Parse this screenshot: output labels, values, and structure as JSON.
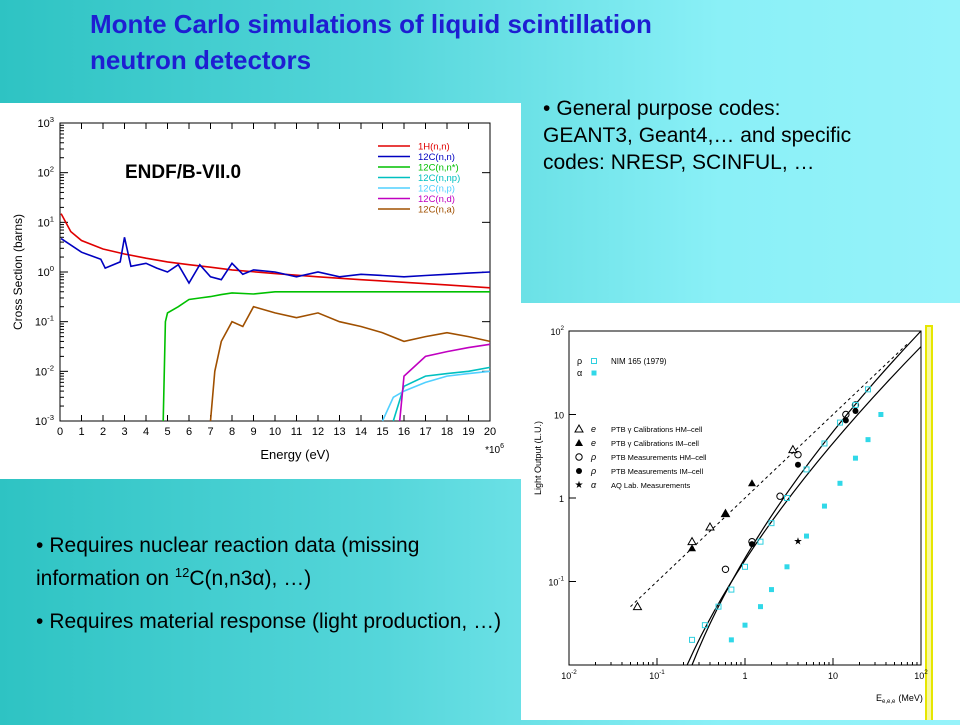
{
  "slide": {
    "title_line1": "Monte Carlo simulations of liquid scintillation",
    "title_line2": "neutron detectors",
    "top_bullet": "General purpose codes: GEANT3, Geant4,… and specific codes: NRESP, SCINFUL, …",
    "bottom_bullet_1_pre": "Requires nuclear reaction data (missing information on ",
    "bottom_bullet_1_sup": "12",
    "bottom_bullet_1_post": "C(n,n3α), …)",
    "bottom_bullet_2": "Requires material response (light production, …)",
    "bullet_symbol": "•"
  },
  "chart_data": [
    {
      "type": "line",
      "annotation": "ENDF/B-VII.0",
      "xlabel": "Energy (eV)",
      "ylabel": "Cross Section (barns)",
      "x_multiplier": "*10",
      "x_multiplier_exp": "6",
      "xlim": [
        0,
        20
      ],
      "ylim": [
        0.001,
        1000
      ],
      "yscale": "log",
      "x_ticks": [
        "0",
        "1",
        "2",
        "3",
        "4",
        "5",
        "6",
        "7",
        "8",
        "9",
        "10",
        "11",
        "12",
        "13",
        "14",
        "15",
        "16",
        "17",
        "18",
        "19",
        "20"
      ],
      "y_ticks": [
        {
          "base": "10",
          "exp": "-3"
        },
        {
          "base": "10",
          "exp": "-2"
        },
        {
          "base": "10",
          "exp": "-1"
        },
        {
          "base": "10",
          "exp": "0"
        },
        {
          "base": "10",
          "exp": "1"
        },
        {
          "base": "10",
          "exp": "2"
        },
        {
          "base": "10",
          "exp": "3"
        }
      ],
      "legend_position": "top-right",
      "series": [
        {
          "name": "1H(n,n)",
          "color": "#e00000",
          "x": [
            0.05,
            0.5,
            1,
            2,
            3,
            4,
            5,
            6,
            7,
            8,
            10,
            12,
            14,
            16,
            18,
            20
          ],
          "y": [
            15,
            6.5,
            4.3,
            2.9,
            2.3,
            1.9,
            1.6,
            1.4,
            1.25,
            1.1,
            0.93,
            0.8,
            0.7,
            0.62,
            0.55,
            0.48
          ]
        },
        {
          "name": "12C(n,n)",
          "color": "#0000c0",
          "x": [
            0.05,
            1,
            1.9,
            2.1,
            2.8,
            3,
            3.3,
            4,
            4.5,
            5,
            5.5,
            6,
            6.5,
            7,
            7.5,
            8,
            8.5,
            9,
            10,
            11,
            12,
            13,
            14,
            15,
            16,
            17,
            18,
            19,
            20
          ],
          "y": [
            4.7,
            2.5,
            1.8,
            1.2,
            1.6,
            5,
            1.3,
            1.5,
            1.2,
            1.0,
            1.4,
            0.6,
            1.4,
            0.8,
            0.7,
            1.5,
            0.9,
            1.1,
            1.0,
            0.8,
            1.0,
            0.8,
            0.9,
            0.85,
            0.8,
            0.85,
            0.9,
            0.95,
            1.0
          ]
        },
        {
          "name": "12C(n,n*)",
          "color": "#00c000",
          "x": [
            4.8,
            4.9,
            5,
            5.5,
            6,
            6.5,
            7,
            7.5,
            8,
            9,
            10,
            12,
            14,
            16,
            18,
            20
          ],
          "y": [
            0.001,
            0.1,
            0.15,
            0.2,
            0.28,
            0.3,
            0.32,
            0.35,
            0.38,
            0.36,
            0.4,
            0.4,
            0.4,
            0.4,
            0.4,
            0.4
          ]
        },
        {
          "name": "12C(n,np)",
          "color": "#00c0c0",
          "x": [
            15.5,
            16,
            17,
            18,
            19,
            20
          ],
          "y": [
            0.001,
            0.005,
            0.008,
            0.009,
            0.01,
            0.012
          ]
        },
        {
          "name": "12C(n,p)",
          "color": "#50d0ff",
          "x": [
            15,
            15.5,
            16,
            17,
            18,
            19,
            20
          ],
          "y": [
            0.001,
            0.003,
            0.004,
            0.006,
            0.008,
            0.009,
            0.01
          ]
        },
        {
          "name": "12C(n,d)",
          "color": "#c000c0",
          "x": [
            15.8,
            16,
            17,
            18,
            19,
            20
          ],
          "y": [
            0.001,
            0.008,
            0.02,
            0.025,
            0.03,
            0.035
          ]
        },
        {
          "name": "12C(n,a)",
          "color": "#a05000",
          "x": [
            7,
            7.2,
            7.5,
            8,
            8.5,
            9,
            10,
            11,
            12,
            13,
            14,
            15,
            16,
            17,
            18,
            19,
            20
          ],
          "y": [
            0.001,
            0.01,
            0.04,
            0.1,
            0.08,
            0.2,
            0.15,
            0.12,
            0.15,
            0.1,
            0.08,
            0.06,
            0.04,
            0.05,
            0.06,
            0.05,
            0.04
          ]
        }
      ]
    },
    {
      "type": "scatter",
      "xlabel": "E",
      "xlabel_sub": "e,e,e",
      "xlabel_unit": "(MeV)",
      "ylabel": "Light Output (L.U.)",
      "xscale": "log",
      "yscale": "log",
      "xlim": [
        0.01,
        100
      ],
      "ylim": [
        0.01,
        100
      ],
      "x_ticks": [
        {
          "base": "10",
          "exp": "-2"
        },
        {
          "base": "10",
          "exp": "-1"
        },
        {
          "base": "1",
          "exp": ""
        },
        {
          "base": "10",
          "exp": ""
        },
        {
          "base": "10",
          "exp": "2"
        }
      ],
      "y_ticks": [
        {
          "base": "10",
          "exp": "-1"
        },
        {
          "base": "1",
          "exp": ""
        },
        {
          "base": "10",
          "exp": ""
        },
        {
          "base": "10",
          "exp": "2"
        }
      ],
      "legend_top": [
        {
          "symbol": "ρ",
          "marker": "open-cyan-square",
          "label": "NIM 165 (1979)"
        },
        {
          "symbol": "α",
          "marker": "cyan-square",
          "label": ""
        }
      ],
      "legend_bottom": [
        {
          "symbol": "e",
          "marker": "open-triangle",
          "label": "PTB γ Calibrations HM–cell"
        },
        {
          "symbol": "e",
          "marker": "filled-triangle",
          "label": "PTB γ Calibrations IM–cell"
        },
        {
          "symbol": "ρ",
          "marker": "open-circle",
          "label": "PTB Measurements HM–cell"
        },
        {
          "symbol": "ρ",
          "marker": "filled-circle",
          "label": "PTB Measurements IM–cell"
        },
        {
          "symbol": "α",
          "marker": "star",
          "label": "AQ Lab. Measurements"
        }
      ],
      "series": [
        {
          "marker": "open-triangle",
          "x": [
            0.06,
            0.25,
            0.4,
            0.6,
            3.5
          ],
          "y": [
            0.05,
            0.3,
            0.45,
            0.65,
            3.8
          ]
        },
        {
          "marker": "filled-triangle",
          "x": [
            0.25,
            0.6,
            1.2
          ],
          "y": [
            0.25,
            0.65,
            1.5
          ]
        },
        {
          "marker": "open-circle",
          "x": [
            0.6,
            1.2,
            2.5,
            4,
            14,
            18
          ],
          "y": [
            0.14,
            0.3,
            1.05,
            3.3,
            10,
            13
          ]
        },
        {
          "marker": "filled-circle",
          "x": [
            1.2,
            4,
            14,
            18
          ],
          "y": [
            0.28,
            2.5,
            8.5,
            11
          ]
        },
        {
          "marker": "star",
          "x": [
            4
          ],
          "y": [
            0.3
          ]
        },
        {
          "marker": "open-cyan-square",
          "x": [
            0.25,
            0.35,
            0.5,
            0.7,
            1,
            1.5,
            2,
            3,
            5,
            8,
            12,
            18,
            25
          ],
          "y": [
            0.02,
            0.03,
            0.05,
            0.08,
            0.15,
            0.3,
            0.5,
            1,
            2.2,
            4.5,
            8,
            13,
            20
          ]
        },
        {
          "marker": "cyan-square",
          "x": [
            0.7,
            1,
            1.5,
            2,
            3,
            5,
            8,
            12,
            18,
            25,
            35
          ],
          "y": [
            0.02,
            0.03,
            0.05,
            0.08,
            0.15,
            0.35,
            0.8,
            1.5,
            3,
            5,
            10
          ]
        }
      ]
    }
  ]
}
